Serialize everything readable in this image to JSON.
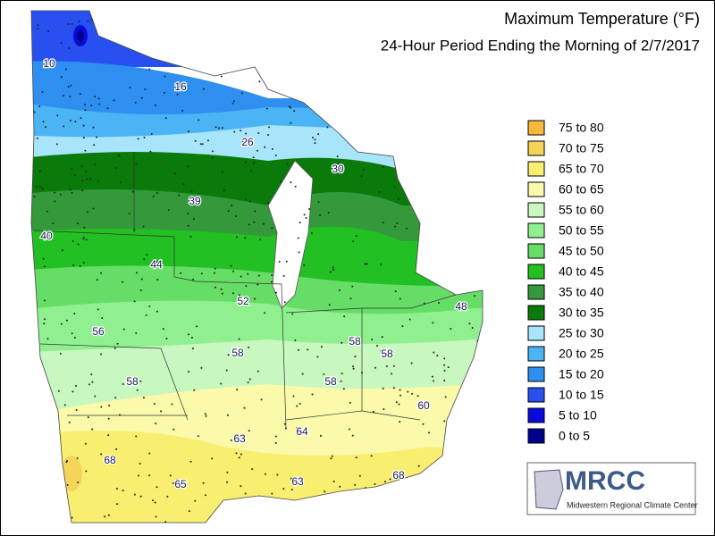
{
  "header": {
    "title": "Maximum Temperature (°F)",
    "subtitle": "24-Hour Period Ending the Morning of 2/7/2017"
  },
  "legend": {
    "items": [
      {
        "label": "75 to 80",
        "color": "#f6b93b"
      },
      {
        "label": "70 to 75",
        "color": "#f5d45a"
      },
      {
        "label": "65 to 70",
        "color": "#f8ee70"
      },
      {
        "label": "60 to 65",
        "color": "#fafaaa"
      },
      {
        "label": "55 to 60",
        "color": "#c8f7c0"
      },
      {
        "label": "50 to 55",
        "color": "#90f090"
      },
      {
        "label": "45 to 50",
        "color": "#66dd66"
      },
      {
        "label": "40 to 45",
        "color": "#22c022"
      },
      {
        "label": "35 to 40",
        "color": "#33993a"
      },
      {
        "label": "30 to 35",
        "color": "#0a7a0a"
      },
      {
        "label": "25 to 30",
        "color": "#a8e4fa"
      },
      {
        "label": "20 to 25",
        "color": "#4ab4f5"
      },
      {
        "label": "15 to 20",
        "color": "#2e8ff0"
      },
      {
        "label": "10 to 15",
        "color": "#2850f0"
      },
      {
        "label": "5 to 10",
        "color": "#0a0adc"
      },
      {
        "label": "0 to 5",
        "color": "#00008c"
      }
    ]
  },
  "map": {
    "labels": [
      "10",
      "16",
      "26",
      "30",
      "39",
      "40",
      "44",
      "52",
      "48",
      "56",
      "58",
      "58",
      "58",
      "58",
      "58",
      "60",
      "64",
      "63",
      "68",
      "65",
      "63",
      "68"
    ]
  },
  "logo": {
    "name": "MRCC",
    "caption": "Midwestern Regional Climate Center"
  }
}
